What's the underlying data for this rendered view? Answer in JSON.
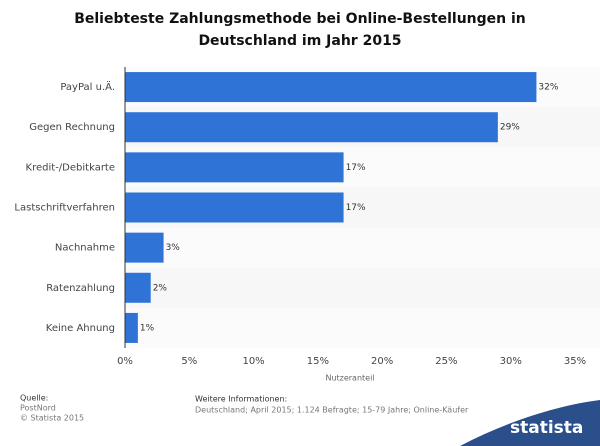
{
  "chart_data": {
    "type": "bar",
    "orientation": "horizontal",
    "title": "Beliebteste Zahlungsmethode bei Online-Bestellungen in Deutschland im Jahr 2015",
    "categories": [
      "PayPal u.Ä.",
      "Gegen Rechnung",
      "Kredit-/Debitkarte",
      "Lastschriftverfahren",
      "Nachnahme",
      "Ratenzahlung",
      "Keine Ahnung"
    ],
    "values": [
      32,
      29,
      17,
      17,
      3,
      2,
      1
    ],
    "value_labels": [
      "32%",
      "29%",
      "17%",
      "17%",
      "3%",
      "2%",
      "1%"
    ],
    "color": "#2f73d6",
    "xlabel": "Nutzeranteil",
    "xlim": [
      0,
      35
    ],
    "xticks": [
      {
        "value": 0,
        "label": "0%"
      },
      {
        "value": 5,
        "label": "5%"
      },
      {
        "value": 10,
        "label": "10%"
      },
      {
        "value": 15,
        "label": "15%"
      },
      {
        "value": 20,
        "label": "20%"
      },
      {
        "value": 25,
        "label": "25%"
      },
      {
        "value": 30,
        "label": "30%"
      },
      {
        "value": 35,
        "label": "35%"
      }
    ],
    "grid": false
  },
  "footer": {
    "source_label": "Quelle:",
    "source": "PostNord",
    "copyright": "© Statista 2015",
    "info_label": "Weitere Informationen:",
    "info": "Deutschland; April 2015; 1.124 Befragte; 15-79 Jahre; Online-Käufer",
    "logo": "statista"
  }
}
